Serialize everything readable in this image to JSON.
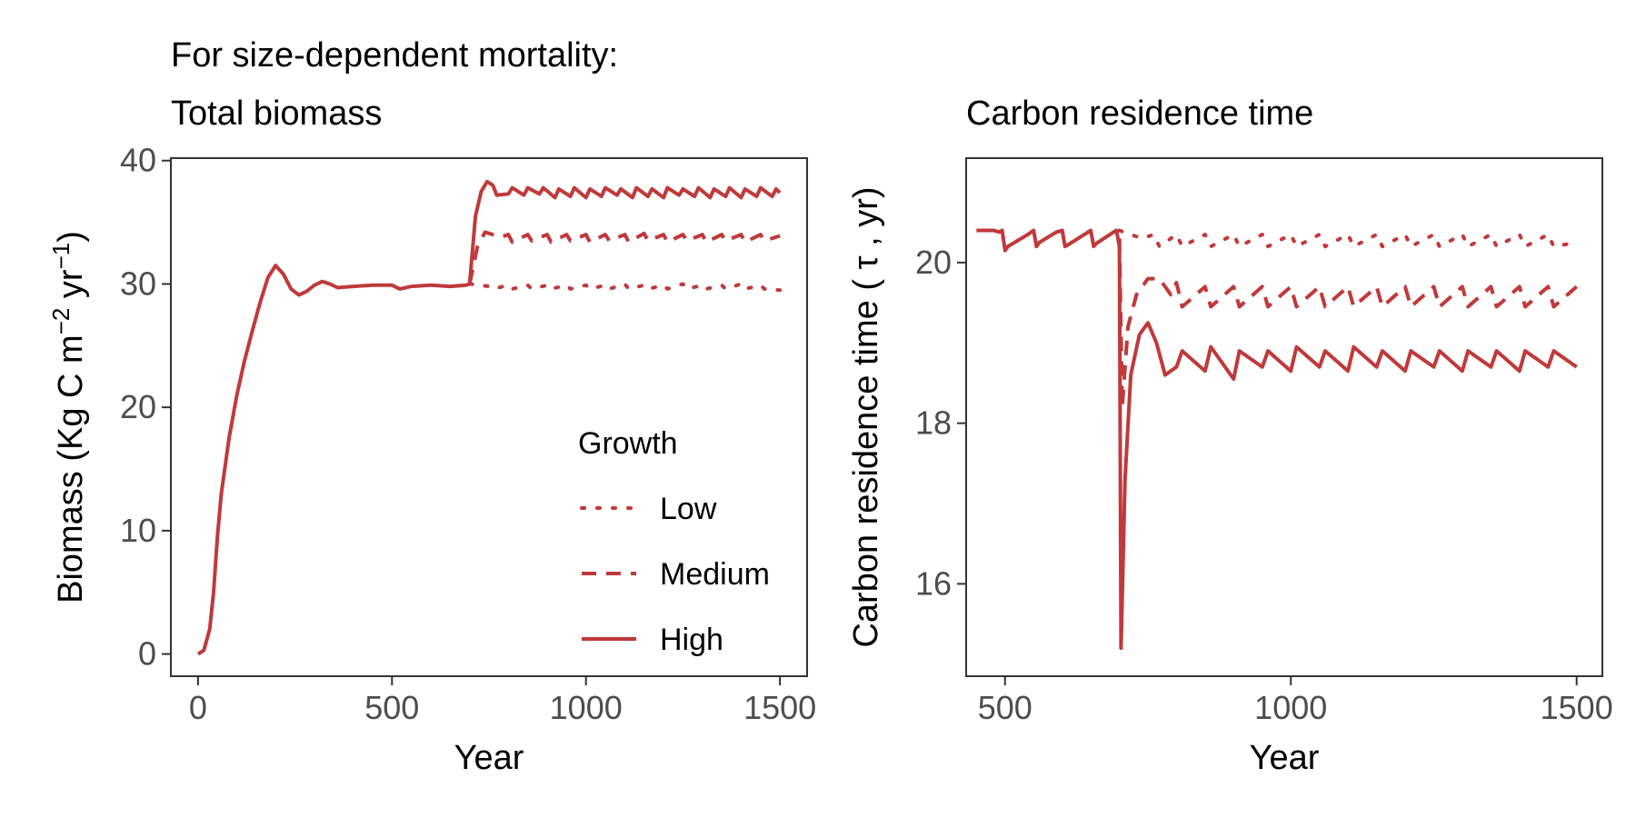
{
  "figure": {
    "header": "For size-dependent mortality:",
    "line_color": "#c0393b"
  },
  "legend": {
    "title": "Growth",
    "entries": [
      {
        "label": "Low",
        "style": "dotted"
      },
      {
        "label": "Medium",
        "style": "dashed"
      },
      {
        "label": "High",
        "style": "solid"
      }
    ]
  },
  "chart_data": [
    {
      "type": "line",
      "title": "Total biomass",
      "xlabel": "Year",
      "ylabel": "Biomass (Kg C m^-2 yr^-1)",
      "ylabel_parts": {
        "pre": "Biomass (Kg C m",
        "sup1": "−2",
        "mid": " yr",
        "sup2": "−1",
        "post": ")"
      },
      "xlim": [
        -70,
        1570
      ],
      "ylim": [
        -1.8,
        40.2
      ],
      "xticks": [
        0,
        500,
        1000,
        1500
      ],
      "yticks": [
        0,
        10,
        20,
        30,
        40
      ],
      "grid": false,
      "legend_position": "bottom-right",
      "shared_series": {
        "name": "all",
        "x": [
          0,
          15,
          30,
          40,
          50,
          60,
          80,
          100,
          120,
          140,
          160,
          180,
          200,
          220,
          240,
          260,
          280,
          300,
          320,
          340,
          360,
          400,
          450,
          500,
          520,
          550,
          600,
          650,
          690,
          700
        ],
        "y": [
          0,
          0.3,
          2.0,
          5.0,
          9.5,
          13,
          17.5,
          21,
          23.8,
          26.2,
          28.5,
          30.5,
          31.5,
          30.8,
          29.6,
          29.1,
          29.4,
          29.9,
          30.2,
          30.0,
          29.7,
          29.8,
          29.9,
          29.9,
          29.6,
          29.8,
          29.9,
          29.8,
          29.9,
          30.0
        ]
      },
      "series": [
        {
          "name": "Low",
          "x": [
            700,
            750,
            760,
            800,
            810,
            850,
            860,
            900,
            910,
            950,
            960,
            1000,
            1010,
            1050,
            1060,
            1100,
            1110,
            1150,
            1160,
            1200,
            1210,
            1250,
            1260,
            1300,
            1310,
            1350,
            1360,
            1400,
            1410,
            1450,
            1460,
            1500
          ],
          "y": [
            30.0,
            29.8,
            29.6,
            29.9,
            29.6,
            29.9,
            29.6,
            29.9,
            29.6,
            29.9,
            29.6,
            29.9,
            29.6,
            29.9,
            29.6,
            30.0,
            29.6,
            29.9,
            29.6,
            29.9,
            29.6,
            30.0,
            29.6,
            29.9,
            29.6,
            29.9,
            29.6,
            30.0,
            29.6,
            29.9,
            29.6,
            29.5
          ]
        },
        {
          "name": "Medium",
          "x": [
            700,
            720,
            740,
            760,
            780,
            800,
            810,
            850,
            860,
            900,
            910,
            950,
            960,
            1000,
            1010,
            1050,
            1060,
            1100,
            1110,
            1150,
            1160,
            1200,
            1210,
            1250,
            1260,
            1300,
            1310,
            1350,
            1360,
            1400,
            1410,
            1450,
            1460,
            1500
          ],
          "y": [
            30.0,
            33.0,
            34.2,
            34.0,
            33.8,
            34.0,
            33.4,
            34.0,
            33.5,
            34.0,
            33.4,
            34.0,
            33.5,
            34.0,
            33.4,
            34.0,
            33.5,
            34.0,
            33.4,
            34.1,
            33.5,
            34.0,
            33.4,
            34.0,
            33.5,
            34.0,
            33.4,
            34.0,
            33.5,
            34.0,
            33.4,
            34.0,
            33.5,
            33.9
          ]
        },
        {
          "name": "High",
          "x": [
            700,
            715,
            730,
            745,
            760,
            770,
            800,
            810,
            840,
            850,
            880,
            890,
            920,
            930,
            960,
            970,
            1000,
            1010,
            1040,
            1050,
            1080,
            1090,
            1120,
            1130,
            1160,
            1170,
            1200,
            1210,
            1240,
            1250,
            1280,
            1290,
            1320,
            1330,
            1360,
            1370,
            1400,
            1410,
            1440,
            1450,
            1480,
            1490,
            1500
          ],
          "y": [
            30.0,
            35.5,
            37.5,
            38.3,
            38.0,
            37.2,
            37.3,
            37.8,
            37.2,
            37.8,
            37.3,
            37.8,
            37.0,
            37.7,
            37.1,
            37.8,
            37.0,
            37.7,
            37.1,
            37.8,
            37.2,
            37.7,
            37.0,
            37.8,
            37.1,
            37.7,
            37.0,
            37.8,
            37.2,
            37.7,
            37.1,
            37.8,
            37.0,
            37.7,
            37.1,
            37.8,
            37.0,
            37.7,
            37.1,
            37.8,
            37.1,
            37.7,
            37.4
          ]
        }
      ]
    },
    {
      "type": "line",
      "title": "Carbon residence time",
      "xlabel": "Year",
      "ylabel": "Carbon residence time ( τ , yr)",
      "xlim": [
        432,
        1545
      ],
      "ylim": [
        14.85,
        21.3
      ],
      "xticks": [
        500,
        1000,
        1500
      ],
      "yticks": [
        16,
        18,
        20
      ],
      "grid": false,
      "shared_series": {
        "name": "all",
        "x": [
          450,
          480,
          490,
          495,
          500,
          505,
          540,
          550,
          555,
          560,
          590,
          600,
          605,
          610,
          650,
          655,
          660,
          690,
          695,
          700
        ],
        "y": [
          20.4,
          20.4,
          20.38,
          20.4,
          20.15,
          20.2,
          20.35,
          20.4,
          20.2,
          20.25,
          20.38,
          20.4,
          20.2,
          20.22,
          20.4,
          20.2,
          20.24,
          20.38,
          20.4,
          20.2
        ]
      },
      "series": [
        {
          "name": "Low",
          "x": [
            700,
            720,
            740,
            760,
            770,
            800,
            810,
            850,
            860,
            900,
            910,
            950,
            960,
            1000,
            1010,
            1050,
            1060,
            1100,
            1110,
            1150,
            1160,
            1200,
            1210,
            1250,
            1260,
            1300,
            1310,
            1350,
            1360,
            1400,
            1410,
            1450,
            1460,
            1500
          ],
          "y": [
            20.4,
            20.35,
            20.3,
            20.35,
            20.2,
            20.35,
            20.2,
            20.35,
            20.2,
            20.35,
            20.2,
            20.35,
            20.2,
            20.35,
            20.2,
            20.35,
            20.2,
            20.35,
            20.2,
            20.35,
            20.2,
            20.35,
            20.2,
            20.35,
            20.2,
            20.35,
            20.2,
            20.35,
            20.2,
            20.35,
            20.2,
            20.35,
            20.2,
            20.25
          ]
        },
        {
          "name": "Medium",
          "x": [
            700,
            705,
            715,
            730,
            750,
            770,
            790,
            800,
            810,
            850,
            860,
            900,
            910,
            950,
            960,
            1000,
            1010,
            1050,
            1060,
            1100,
            1110,
            1150,
            1160,
            1200,
            1210,
            1250,
            1260,
            1300,
            1310,
            1350,
            1360,
            1400,
            1410,
            1450,
            1460,
            1500
          ],
          "y": [
            20.3,
            18.2,
            19.2,
            19.6,
            19.8,
            19.8,
            19.6,
            19.75,
            19.45,
            19.7,
            19.45,
            19.7,
            19.45,
            19.7,
            19.45,
            19.7,
            19.45,
            19.7,
            19.45,
            19.7,
            19.45,
            19.7,
            19.45,
            19.7,
            19.45,
            19.7,
            19.45,
            19.7,
            19.45,
            19.7,
            19.45,
            19.7,
            19.45,
            19.7,
            19.45,
            19.7
          ]
        },
        {
          "name": "High",
          "x": [
            700,
            703,
            710,
            720,
            735,
            750,
            765,
            780,
            800,
            810,
            850,
            860,
            900,
            910,
            950,
            960,
            1000,
            1010,
            1050,
            1060,
            1100,
            1110,
            1150,
            1160,
            1200,
            1210,
            1250,
            1260,
            1300,
            1310,
            1350,
            1360,
            1400,
            1410,
            1450,
            1460,
            1500
          ],
          "y": [
            20.3,
            15.2,
            17.3,
            18.6,
            19.1,
            19.25,
            19.0,
            18.6,
            18.7,
            18.9,
            18.65,
            18.95,
            18.55,
            18.9,
            18.7,
            18.9,
            18.65,
            18.95,
            18.7,
            18.9,
            18.65,
            18.95,
            18.7,
            18.9,
            18.65,
            18.9,
            18.7,
            18.9,
            18.65,
            18.9,
            18.7,
            18.9,
            18.65,
            18.9,
            18.7,
            18.9,
            18.7
          ]
        }
      ]
    }
  ]
}
